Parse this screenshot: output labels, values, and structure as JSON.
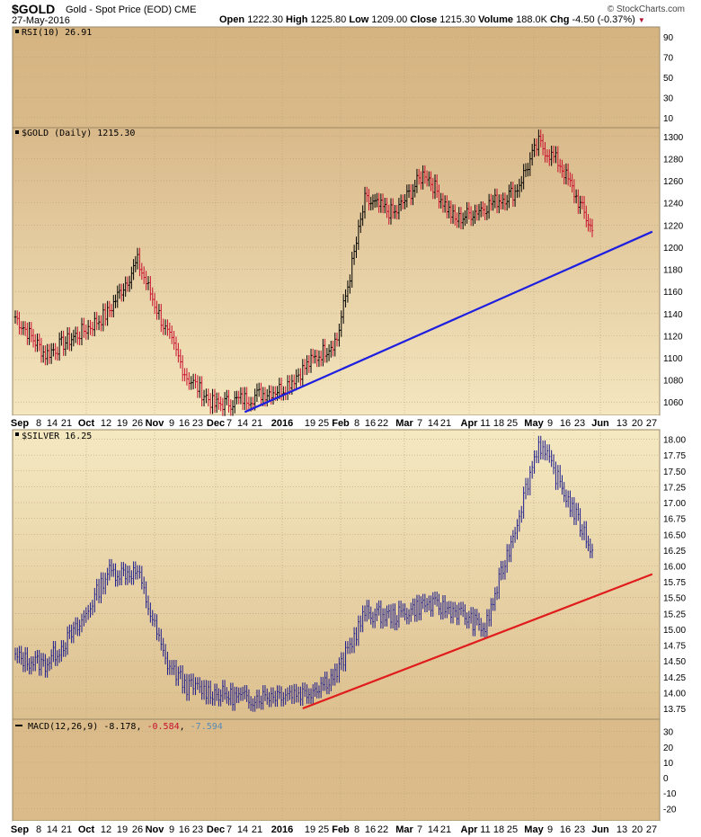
{
  "header": {
    "symbol": "$GOLD",
    "description": "Gold - Spot Price (EOD)  CME",
    "date": "27-May-2016",
    "open_label": "Open",
    "open": "1222.30",
    "high_label": "High",
    "high": "1225.80",
    "low_label": "Low",
    "low": "1209.00",
    "close_label": "Close",
    "close": "1215.30",
    "volume_label": "Volume",
    "volume": "188.0K",
    "chg_label": "Chg",
    "chg": "-4.50 (-0.37%)",
    "credit": "© StockCharts.com"
  },
  "colors": {
    "panel_bg": "#ddbf8c",
    "panel_bg_light": "#f5e9c4",
    "gold_up": "#000000",
    "gold_down": "#c8102e",
    "silver_line": "#1a1a8c",
    "gold_trend": "#1f1fdf",
    "silver_trend": "#e01c1c"
  },
  "x_axis": {
    "top_labels": [
      "Sep",
      "8",
      "14",
      "21",
      "Oct",
      "12",
      "19",
      "26",
      "Nov",
      "9",
      "16",
      "23",
      "Dec",
      "7",
      "14",
      "21",
      "2016",
      "19",
      "25",
      "Feb",
      "8",
      "16",
      "22",
      "Mar",
      "7",
      "14",
      "21",
      "Apr",
      "11",
      "18",
      "25",
      "May",
      "9",
      "16",
      "23",
      "Jun",
      "13",
      "20",
      "27"
    ],
    "bottom_labels": [
      "Sep",
      "8",
      "14",
      "21",
      "Oct",
      "12",
      "19",
      "26",
      "Nov",
      "9",
      "16",
      "23",
      "Dec",
      "7",
      "14",
      "21",
      "2016",
      "19",
      "25",
      "Feb",
      "8",
      "16",
      "22",
      "Mar",
      "7",
      "14",
      "21",
      "Apr",
      "11",
      "18",
      "25",
      "May",
      "9",
      "16",
      "23",
      "Jun",
      "13",
      "20",
      "27"
    ]
  },
  "chart_data": [
    {
      "type": "line",
      "title": "RSI(10) 26.91",
      "indicator": "RSI(10)",
      "value": 26.91,
      "y_ticks": [
        10,
        30,
        50,
        70,
        90
      ],
      "ylim": [
        0,
        100
      ]
    },
    {
      "type": "ohlc",
      "title": "$GOLD (Daily) 1215.30",
      "series_name": "$GOLD",
      "last": 1215.3,
      "y_ticks": [
        1060,
        1080,
        1100,
        1120,
        1140,
        1160,
        1180,
        1200,
        1220,
        1240,
        1260,
        1280,
        1300
      ],
      "ylim": [
        1048,
        1308
      ],
      "x": [
        "2015-09-01",
        "2015-09-15",
        "2015-10-01",
        "2015-10-14",
        "2015-10-28",
        "2015-11-10",
        "2015-11-20",
        "2015-12-03",
        "2015-12-17",
        "2016-01-04",
        "2016-01-15",
        "2016-01-29",
        "2016-02-11",
        "2016-02-25",
        "2016-03-10",
        "2016-03-24",
        "2016-04-07",
        "2016-04-21",
        "2016-05-02",
        "2016-05-12",
        "2016-05-27"
      ],
      "values": [
        1137,
        1103,
        1122,
        1140,
        1187,
        1125,
        1083,
        1057,
        1063,
        1073,
        1093,
        1117,
        1242,
        1230,
        1268,
        1224,
        1237,
        1250,
        1294,
        1275,
        1215
      ],
      "trendline": {
        "from": [
          "2015-12-17",
          1051
        ],
        "to": [
          "2016-06-24",
          1214
        ]
      }
    },
    {
      "type": "line",
      "title": "$SILVER 16.25",
      "series_name": "$SILVER",
      "last": 16.25,
      "y_ticks": [
        13.75,
        14.0,
        14.25,
        14.5,
        14.75,
        15.0,
        15.25,
        15.5,
        15.75,
        16.0,
        16.25,
        16.5,
        16.75,
        17.0,
        17.25,
        17.5,
        17.75,
        18.0
      ],
      "y_tick_labels": [
        "13.75",
        "14.00",
        "14.25",
        "14.50",
        "14.75",
        "15.00",
        "15.25",
        "15.50",
        "15.75",
        "16.00",
        "16.25",
        "16.50",
        "16.75",
        "17.00",
        "17.25",
        "17.50",
        "17.75",
        "18.00"
      ],
      "ylim": [
        13.58,
        18.15
      ],
      "x": [
        "2015-09-01",
        "2015-09-15",
        "2015-10-01",
        "2015-10-14",
        "2015-10-28",
        "2015-11-10",
        "2015-11-20",
        "2015-12-03",
        "2015-12-17",
        "2016-01-04",
        "2016-01-15",
        "2016-01-29",
        "2016-02-11",
        "2016-02-25",
        "2016-03-10",
        "2016-03-24",
        "2016-04-07",
        "2016-04-21",
        "2016-05-02",
        "2016-05-12",
        "2016-05-27"
      ],
      "values": [
        14.55,
        14.45,
        15.05,
        15.9,
        15.9,
        14.5,
        14.1,
        14.0,
        13.9,
        14.0,
        14.0,
        14.3,
        15.25,
        15.2,
        15.4,
        15.3,
        15.0,
        16.6,
        17.95,
        17.3,
        16.25
      ],
      "trendline": {
        "from": [
          "2016-01-13",
          13.75
        ],
        "to": [
          "2016-06-24",
          15.87
        ]
      }
    },
    {
      "type": "line",
      "title": "MACD(12,26,9)",
      "indicator": "MACD(12,26,9)",
      "legend": [
        "-8.178",
        "-0.584",
        "-7.594"
      ],
      "legend_colors": [
        "#000000",
        "#c8102e",
        "#5a8ab5"
      ],
      "y_ticks": [
        -20,
        -10,
        0,
        10,
        20,
        30
      ],
      "ylim": [
        -28,
        38
      ]
    }
  ]
}
